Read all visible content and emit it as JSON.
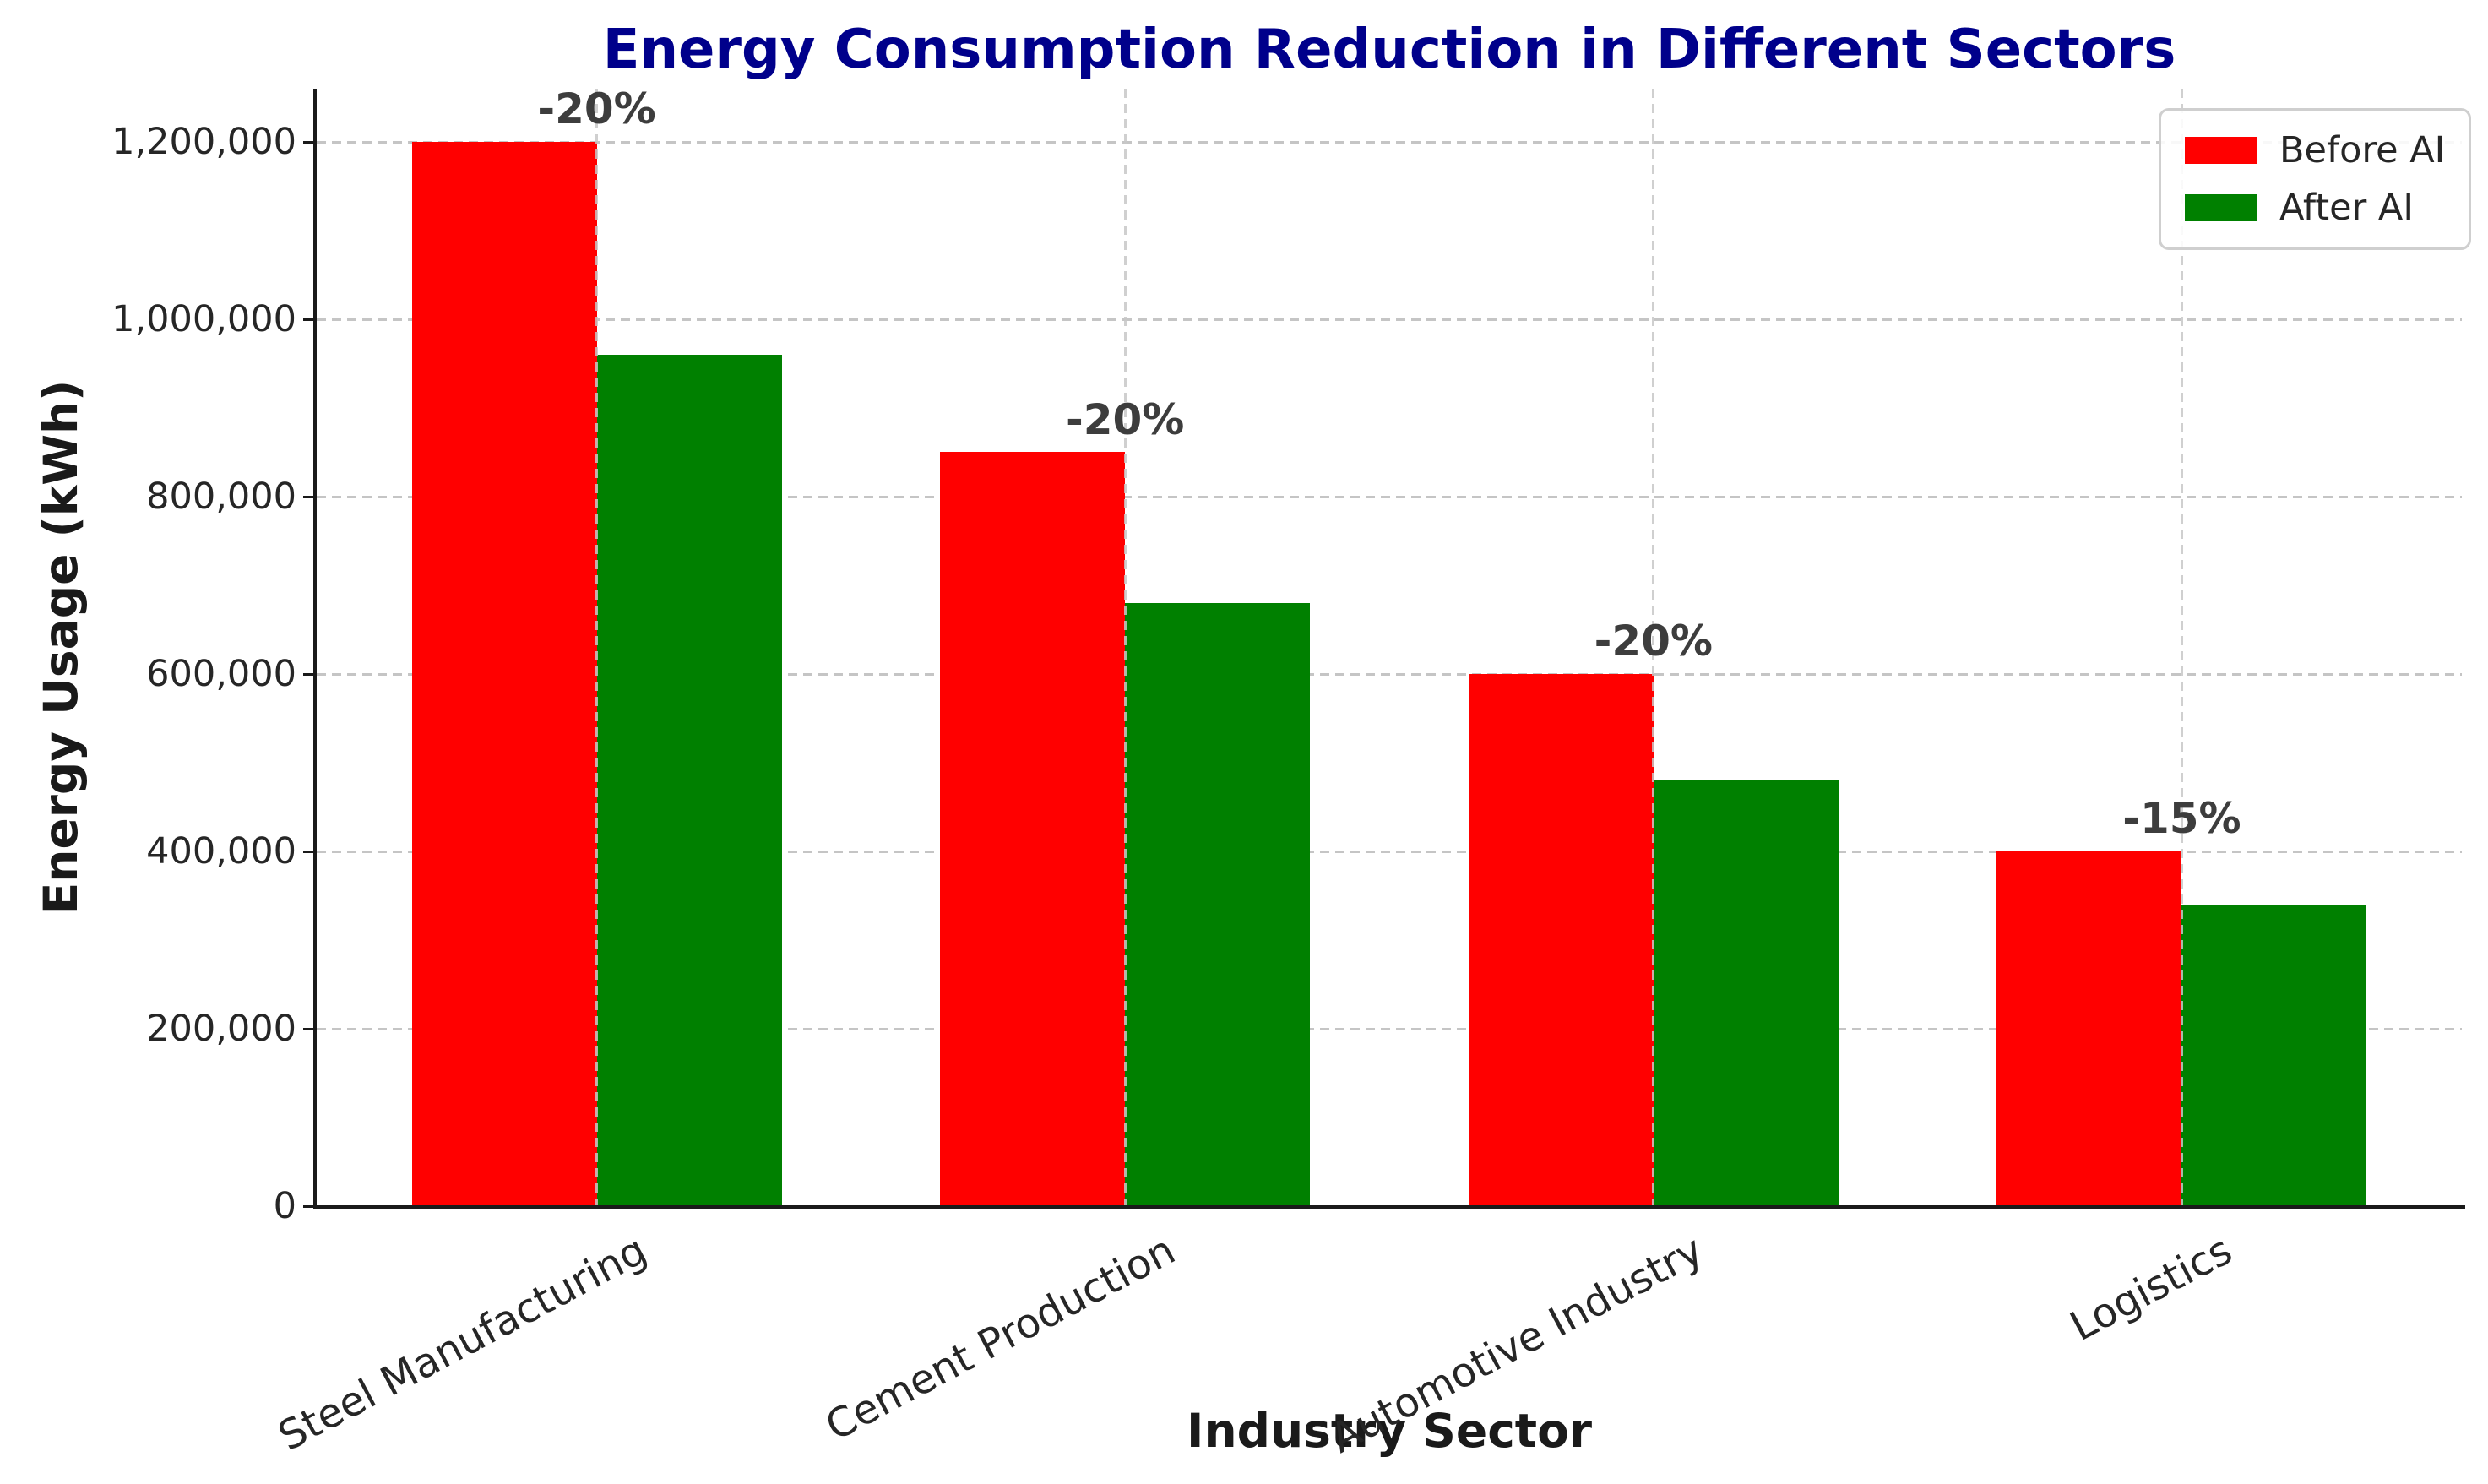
{
  "chart_data": {
    "type": "bar",
    "title": "Energy Consumption Reduction in Different Sectors",
    "xlabel": "Industry Sector",
    "ylabel": "Energy Usage (kWh)",
    "categories": [
      "Steel Manufacturing",
      "Cement Production",
      "Automotive Industry",
      "Logistics"
    ],
    "series": [
      {
        "name": "Before AI",
        "color": "#ff0000",
        "values": [
          1200000,
          850000,
          600000,
          400000
        ]
      },
      {
        "name": "After AI",
        "color": "#008000",
        "values": [
          960000,
          680000,
          480000,
          340000
        ]
      }
    ],
    "annotations": [
      "-20%",
      "-20%",
      "-20%",
      "-15%"
    ],
    "ylim": [
      0,
      1260000
    ],
    "yticks": [
      0,
      200000,
      400000,
      600000,
      800000,
      1000000,
      1200000
    ],
    "ytick_labels": [
      "0",
      "200,000",
      "400,000",
      "600,000",
      "800,000",
      "1,000,000",
      "1,200,000"
    ],
    "grid": true,
    "legend_position": "upper right",
    "colors": {
      "title": "#00008b",
      "annotation": "#3d3d3d",
      "gridline": "#c5c5c5",
      "axis": "#1a1a1a"
    }
  }
}
